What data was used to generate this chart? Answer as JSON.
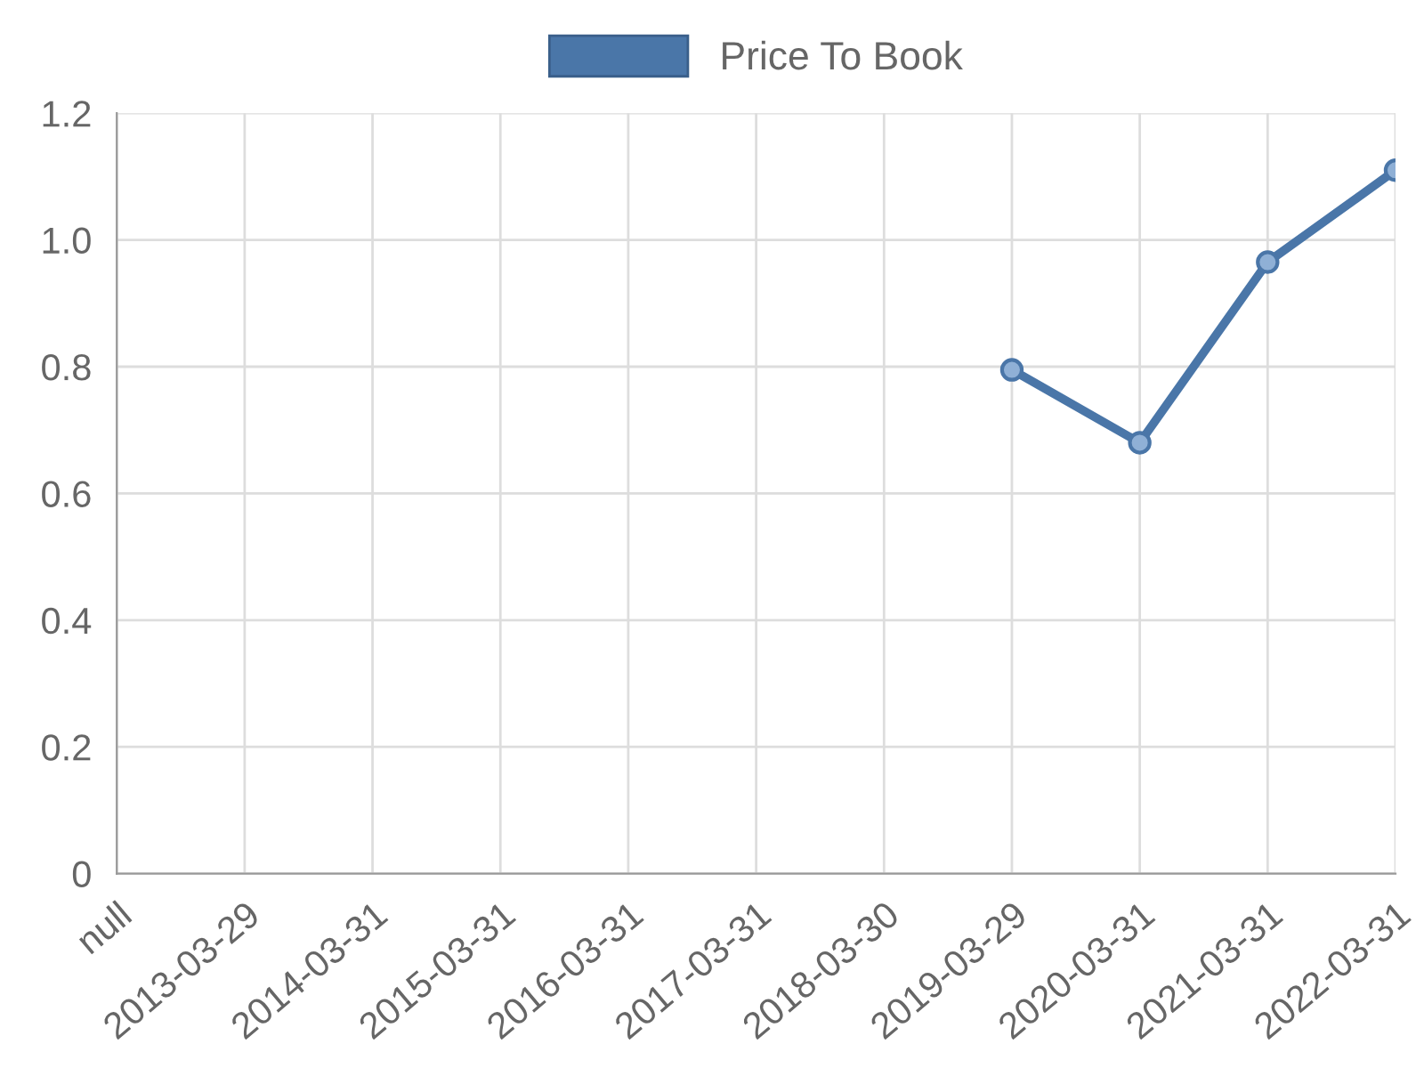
{
  "chart_data": {
    "type": "line",
    "categories": [
      "null",
      "2013-03-29",
      "2014-03-31",
      "2015-03-31",
      "2016-03-31",
      "2017-03-31",
      "2018-03-30",
      "2019-03-29",
      "2020-03-31",
      "2021-03-31",
      "2022-03-31"
    ],
    "series": [
      {
        "name": "Price To Book",
        "color": "#4a76a8",
        "values": [
          null,
          null,
          null,
          null,
          null,
          null,
          null,
          0.795,
          0.68,
          0.965,
          1.11
        ]
      }
    ],
    "ylim": [
      0,
      1.2
    ],
    "yticks": [
      0,
      0.2,
      0.4,
      0.6,
      0.8,
      {
        "value": 1,
        "label": "1.0"
      },
      1.2
    ],
    "grid": true,
    "legend": "top",
    "marker": "circle",
    "line_style": "solid"
  }
}
